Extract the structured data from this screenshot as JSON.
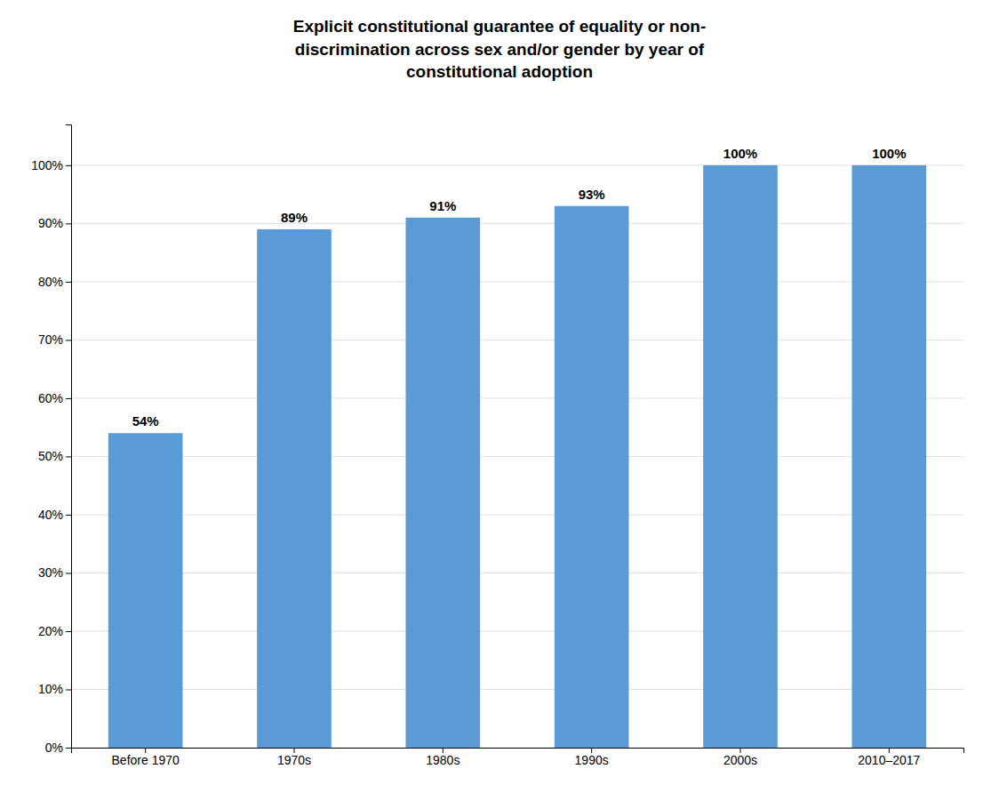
{
  "chart_data": {
    "type": "bar",
    "title": "Explicit constitutional guarantee of equality or non-\ndiscrimination across sex and/or gender by year of\nconstitutional adoption",
    "categories": [
      "Before 1970",
      "1970s",
      "1980s",
      "1990s",
      "2000s",
      "2010–2017"
    ],
    "values": [
      54,
      89,
      91,
      93,
      100,
      100
    ],
    "value_labels": [
      "54%",
      "89%",
      "91%",
      "93%",
      "100%",
      "100%"
    ],
    "data_labels": true,
    "color": "#5b9bd5",
    "ylim": [
      0,
      107
    ],
    "yticks": [
      {
        "value": 0,
        "label": "0%"
      },
      {
        "value": 10,
        "label": "10%"
      },
      {
        "value": 20,
        "label": "20%"
      },
      {
        "value": 30,
        "label": "30%"
      },
      {
        "value": 40,
        "label": "40%"
      },
      {
        "value": 50,
        "label": "50%"
      },
      {
        "value": 60,
        "label": "60%"
      },
      {
        "value": 70,
        "label": "70%"
      },
      {
        "value": 80,
        "label": "80%"
      },
      {
        "value": 90,
        "label": "90%"
      },
      {
        "value": 100,
        "label": "100%"
      }
    ],
    "grid": true
  }
}
